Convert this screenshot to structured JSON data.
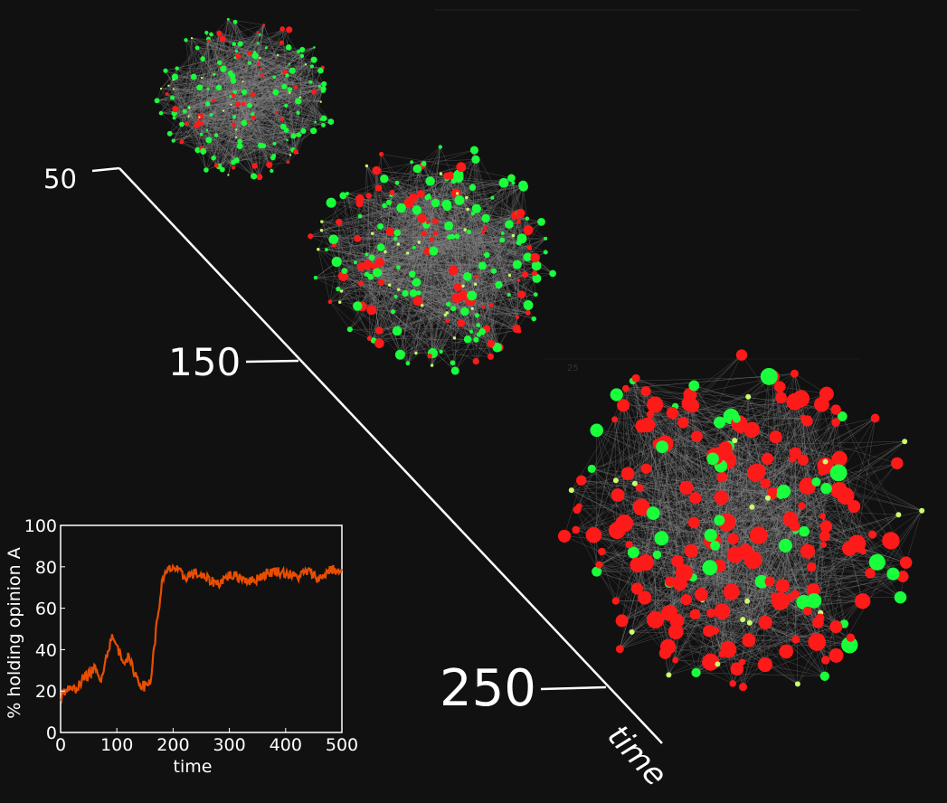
{
  "timeline": {
    "axis_label": "time",
    "ticks": [
      {
        "label": "50"
      },
      {
        "label": "150"
      },
      {
        "label": "250"
      }
    ]
  },
  "networks": [
    {
      "name": "network-t50",
      "node_counts": {
        "red": 45,
        "green": 110,
        "yellow": 25
      }
    },
    {
      "name": "network-t150",
      "node_counts": {
        "red": 75,
        "green": 120,
        "yellow": 30
      }
    },
    {
      "name": "network-t250",
      "node_counts": {
        "red": 160,
        "green": 45,
        "yellow": 20
      }
    }
  ],
  "colors": {
    "background": "#111111",
    "red_node": "#ff1a1a",
    "green_node": "#19ff3c",
    "yellow_node": "#c8ff6e",
    "edge": "#8a8a8a",
    "plot_line": "#ff5500",
    "axis": "#ffffff"
  },
  "stray_label": "25",
  "chart_data": {
    "type": "line",
    "title": "",
    "xlabel": "time",
    "ylabel": "% holding opinion A",
    "xlim": [
      0,
      500
    ],
    "ylim": [
      0,
      100
    ],
    "xticks": [
      "0",
      "100",
      "200",
      "300",
      "400",
      "500"
    ],
    "yticks": [
      "0",
      "20",
      "40",
      "60",
      "80",
      "100"
    ],
    "series": [
      {
        "x": [
          0,
          10,
          20,
          30,
          40,
          50,
          60,
          70,
          80,
          90,
          100,
          110,
          120,
          130,
          140,
          150,
          160,
          170,
          180,
          190,
          200,
          220,
          240,
          260,
          280,
          300,
          320,
          340,
          360,
          380,
          400,
          420,
          440,
          460,
          480,
          500
        ],
        "y": [
          17,
          21,
          20,
          22,
          26,
          28,
          31,
          25,
          35,
          46,
          42,
          35,
          36,
          30,
          24,
          22,
          25,
          50,
          72,
          78,
          80,
          75,
          77,
          74,
          72,
          76,
          75,
          73,
          76,
          78,
          77,
          75,
          78,
          74,
          79,
          77
        ]
      }
    ]
  }
}
